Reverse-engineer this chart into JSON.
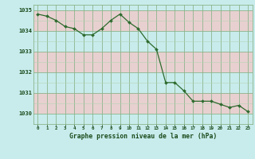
{
  "x": [
    0,
    1,
    2,
    3,
    4,
    5,
    6,
    7,
    8,
    9,
    10,
    11,
    12,
    13,
    14,
    15,
    16,
    17,
    18,
    19,
    20,
    21,
    22,
    23
  ],
  "y": [
    1034.8,
    1034.7,
    1034.5,
    1034.2,
    1034.1,
    1033.8,
    1033.8,
    1034.1,
    1034.5,
    1034.8,
    1034.4,
    1034.1,
    1033.5,
    1033.1,
    1031.5,
    1031.5,
    1031.1,
    1030.6,
    1030.6,
    1030.6,
    1030.45,
    1030.3,
    1030.4,
    1030.1
  ],
  "line_color": "#2d6a2d",
  "marker_color": "#2d6a2d",
  "bg_color": "#c8ecec",
  "bg_pink": "#e8d0d0",
  "grid_color_major": "#8cb48c",
  "grid_color_minor": "#b4d4b4",
  "xlabel": "Graphe pression niveau de la mer (hPa)",
  "xlabel_color": "#1a4a1a",
  "tick_color": "#1a4a1a",
  "ylim": [
    1029.5,
    1035.25
  ],
  "yticks": [
    1030,
    1031,
    1032,
    1033,
    1034,
    1035
  ],
  "xticks": [
    0,
    1,
    2,
    3,
    4,
    5,
    6,
    7,
    8,
    9,
    10,
    11,
    12,
    13,
    14,
    15,
    16,
    17,
    18,
    19,
    20,
    21,
    22,
    23
  ],
  "xlim": [
    -0.5,
    23.5
  ]
}
